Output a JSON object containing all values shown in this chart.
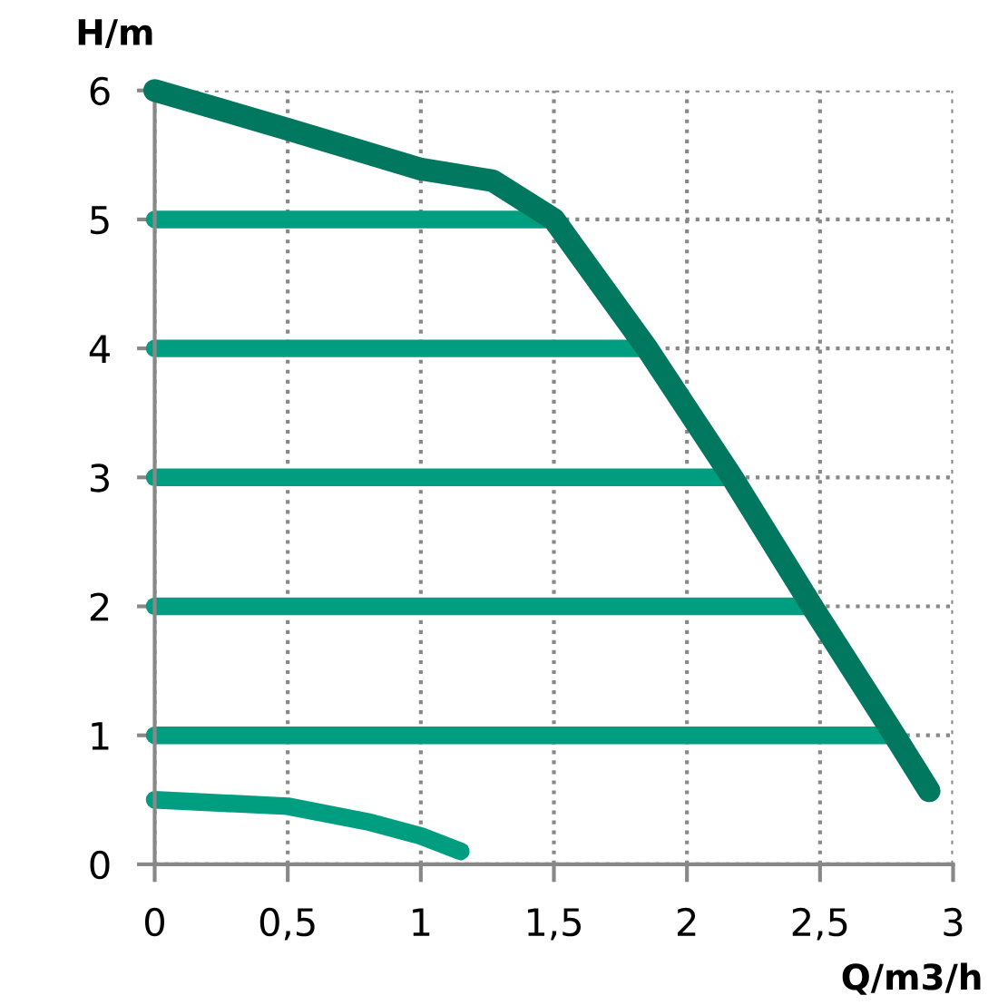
{
  "chart_data": {
    "type": "line",
    "xlabel": "Q/m3/h",
    "ylabel": "H/m",
    "xlim": [
      0,
      3
    ],
    "ylim": [
      0,
      6
    ],
    "xticks": [
      0,
      {
        "value": 0.5,
        "label": "0,5"
      },
      1,
      {
        "value": 1.5,
        "label": "1,5"
      },
      2,
      {
        "value": 2.5,
        "label": "2,5"
      },
      3
    ],
    "yticks": [
      0,
      1,
      2,
      3,
      4,
      5,
      6
    ],
    "grid": true,
    "line_style": "solid",
    "marker": "none",
    "series": [
      {
        "color": "#00775f",
        "x": [
          0,
          0.5,
          1,
          1.27,
          1.5,
          1.85,
          2.17,
          2.47,
          2.78,
          2.91
        ],
        "values": [
          6,
          5.7,
          5.39,
          5.3,
          5,
          4,
          3,
          2,
          1,
          0.57
        ]
      },
      {
        "color": "#009e80",
        "x": [
          0,
          1.5
        ],
        "values": [
          5,
          5
        ]
      },
      {
        "color": "#009e80",
        "x": [
          0,
          1.85
        ],
        "values": [
          4,
          4
        ]
      },
      {
        "color": "#009e80",
        "x": [
          0,
          2.17
        ],
        "values": [
          3,
          3
        ]
      },
      {
        "color": "#009e80",
        "x": [
          0,
          2.47
        ],
        "values": [
          2,
          2
        ]
      },
      {
        "color": "#009e80",
        "x": [
          0,
          2.78
        ],
        "values": [
          1,
          1
        ]
      },
      {
        "color": "#009e80",
        "x": [
          0,
          0.5,
          0.8,
          1.0,
          1.15
        ],
        "values": [
          0.5,
          0.45,
          0.33,
          0.22,
          0.1
        ]
      }
    ]
  }
}
